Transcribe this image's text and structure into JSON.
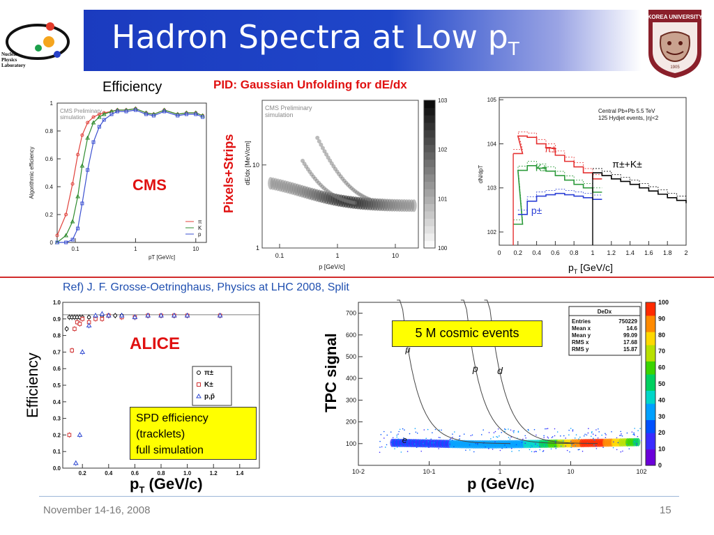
{
  "header": {
    "title_main": "Hadron Spectra at Low p",
    "title_sub": "T",
    "logo_lines": [
      "Nuclear",
      "Physics",
      "Laboratory"
    ],
    "seal_text": "KOREA UNIVERSITY",
    "seal_year": "1905"
  },
  "top_row": {
    "efficiency_label": "Efficiency",
    "pid_label": "PID: Gaussian Unfolding for dE/dx",
    "pixels_strips_label": "Pixels+Strips",
    "cms_label": "CMS",
    "pt_label": "p",
    "pt_label_sub": "T",
    "pt_label_unit": " [GeV/c]"
  },
  "ref_text": "Ref) J. F. Grosse-Oetringhaus, Physics at LHC 2008, Split",
  "bottom_row": {
    "alice_label": "ALICE",
    "efficiency_label": "Efficiency",
    "spd_box": [
      "SPD efficiency",
      "(tracklets)",
      "full simulation"
    ],
    "pt_label": "p",
    "pt_label_sub": "T",
    "pt_label_unit": " (GeV/c)",
    "tpc_label": "TPC signal",
    "cosmic_label": "5 M cosmic events",
    "p_label": "p  (GeV/c)"
  },
  "footer": {
    "date": "November 14-16, 2008",
    "page": "15"
  },
  "chart_data": [
    {
      "type": "line",
      "panel": "cms-efficiency",
      "annotation": [
        "CMS Preliminary",
        "simulation"
      ],
      "xlabel": "pT [GeV/c]",
      "ylabel": "Algorithmic efficiency",
      "x_scale": "log",
      "xlim": [
        0.05,
        15
      ],
      "ylim": [
        0,
        1
      ],
      "x_ticks": [
        "0.1",
        "1",
        "10"
      ],
      "y_ticks": [
        "0",
        "0.2",
        "0.4",
        "0.6",
        "0.8",
        "1"
      ],
      "legend": [
        "π",
        "K",
        "p"
      ],
      "colors": {
        "pi": "#e0403a",
        "K": "#2e8b2e",
        "p": "#3a4fd0"
      },
      "x": [
        0.05,
        0.07,
        0.09,
        0.11,
        0.13,
        0.16,
        0.2,
        0.25,
        0.3,
        0.4,
        0.5,
        0.7,
        1,
        1.5,
        2,
        3,
        5,
        7,
        10,
        13
      ],
      "series": [
        {
          "name": "π",
          "values": [
            0.05,
            0.2,
            0.42,
            0.63,
            0.77,
            0.86,
            0.9,
            0.92,
            0.93,
            0.94,
            0.95,
            0.95,
            0.96,
            0.93,
            0.92,
            0.95,
            0.92,
            0.93,
            0.93,
            0.91
          ]
        },
        {
          "name": "K",
          "values": [
            0.0,
            0.05,
            0.15,
            0.33,
            0.55,
            0.75,
            0.86,
            0.9,
            0.92,
            0.94,
            0.95,
            0.95,
            0.96,
            0.93,
            0.92,
            0.95,
            0.92,
            0.93,
            0.93,
            0.91
          ]
        },
        {
          "name": "p",
          "values": [
            0.0,
            0.0,
            0.02,
            0.1,
            0.28,
            0.52,
            0.72,
            0.83,
            0.88,
            0.92,
            0.94,
            0.94,
            0.95,
            0.92,
            0.91,
            0.94,
            0.91,
            0.92,
            0.92,
            0.9
          ]
        }
      ]
    },
    {
      "type": "heatmap",
      "panel": "cms-dedx",
      "annotation": [
        "CMS Preliminary",
        "simulation"
      ],
      "xlabel": "p [GeV/c]",
      "ylabel": "dE/dx [MeV/cm]",
      "x_scale": "log",
      "y_scale": "log",
      "x_ticks": [
        "0.1",
        "1",
        "10"
      ],
      "y_ticks": [
        "1",
        "10"
      ],
      "colorbar_ticks": [
        "10^0",
        "10^1",
        "10^2",
        "10^3"
      ]
    },
    {
      "type": "line",
      "panel": "cms-spectra",
      "annotation": [
        "Central Pb+Pb 5.5 TeV",
        "125 Hydjet events, |η|<2"
      ],
      "xlabel": "pT [GeV/c]",
      "ylabel": "dN/dpT",
      "y_scale": "log",
      "xlim": [
        0,
        2
      ],
      "x_ticks": [
        "0",
        "0.2",
        "0.4",
        "0.6",
        "0.8",
        "1",
        "1.2",
        "1.4",
        "1.6",
        "1.8",
        "2"
      ],
      "y_ticks": [
        "10^2",
        "10^3",
        "10^4",
        "10^5"
      ],
      "series": [
        {
          "name": "π±",
          "color": "#e53030",
          "x": [
            0.15,
            0.2,
            0.3,
            0.4,
            0.5,
            0.6,
            0.7,
            0.8,
            0.9,
            1.0
          ],
          "values": [
            6000,
            15000,
            14000,
            10000,
            8000,
            5500,
            4000,
            3000,
            2200,
            1600
          ]
        },
        {
          "name": "K±",
          "color": "#2b9a3a",
          "x": [
            0.15,
            0.2,
            0.3,
            0.4,
            0.5,
            0.6,
            0.7,
            0.8,
            0.9,
            1.0
          ],
          "values": [
            150,
            2500,
            3200,
            2800,
            2400,
            1900,
            1500,
            1200,
            1000,
            800
          ]
        },
        {
          "name": "p±",
          "color": "#2a3fd6",
          "x": [
            0.2,
            0.3,
            0.4,
            0.5,
            0.6,
            0.7,
            0.8,
            0.9,
            1.0
          ],
          "values": [
            250,
            500,
            650,
            700,
            750,
            700,
            650,
            600,
            550
          ]
        },
        {
          "name": "π±+K±",
          "color": "#000000",
          "x": [
            1.0,
            1.1,
            1.2,
            1.3,
            1.4,
            1.5,
            1.6,
            1.7,
            1.8,
            1.9,
            2.0
          ],
          "values": [
            2200,
            1900,
            1600,
            1400,
            1200,
            1000,
            850,
            720,
            600,
            520,
            450
          ]
        }
      ]
    },
    {
      "type": "scatter",
      "panel": "alice-efficiency",
      "xlabel": "pT (GeV/c)",
      "ylabel": "Efficiency",
      "xlim": [
        0.05,
        1.55
      ],
      "ylim": [
        0,
        1
      ],
      "x_ticks": [
        "0.2",
        "0.4",
        "0.6",
        "0.8",
        "1.0",
        "1.2",
        "1.4"
      ],
      "y_ticks": [
        "0.0",
        "0.1",
        "0.2",
        "0.3",
        "0.4",
        "0.5",
        "0.6",
        "0.7",
        "0.8",
        "0.9",
        "1.0"
      ],
      "legend": [
        "π±",
        "K±",
        "p,p̄"
      ],
      "series": [
        {
          "name": "π±",
          "color": "#000000",
          "x": [
            0.08,
            0.1,
            0.12,
            0.14,
            0.16,
            0.18,
            0.2,
            0.25,
            0.3,
            0.35,
            0.4,
            0.45,
            0.5,
            0.6,
            0.7,
            0.8,
            0.9,
            1.0,
            1.25
          ],
          "values": [
            0.84,
            0.91,
            0.91,
            0.91,
            0.91,
            0.91,
            0.91,
            0.91,
            0.91,
            0.92,
            0.92,
            0.92,
            0.92,
            0.91,
            0.92,
            0.92,
            0.92,
            0.92,
            0.92
          ]
        },
        {
          "name": "K±",
          "color": "#d03030",
          "x": [
            0.1,
            0.12,
            0.14,
            0.16,
            0.18,
            0.2,
            0.25,
            0.3,
            0.35,
            0.4,
            0.5,
            0.6,
            0.7,
            0.8,
            0.9,
            1.0,
            1.25
          ],
          "values": [
            0.2,
            0.71,
            0.84,
            0.88,
            0.87,
            0.9,
            0.88,
            0.9,
            0.9,
            0.92,
            0.91,
            0.91,
            0.92,
            0.92,
            0.92,
            0.92,
            0.92
          ]
        },
        {
          "name": "p,p̄",
          "color": "#2a44d0",
          "x": [
            0.15,
            0.18,
            0.2,
            0.25,
            0.3,
            0.35,
            0.4,
            0.5,
            0.6,
            0.7,
            0.8,
            0.9,
            1.0,
            1.25
          ],
          "values": [
            0.03,
            0.2,
            0.7,
            0.86,
            0.92,
            0.93,
            0.92,
            0.92,
            0.91,
            0.92,
            0.92,
            0.92,
            0.92,
            0.92
          ]
        }
      ]
    },
    {
      "type": "heatmap",
      "panel": "alice-tpc",
      "xlabel": "p (GeV/c)",
      "ylabel": "TPC signal",
      "x_scale": "log",
      "x_ticks": [
        "10^-2",
        "10^-1",
        "1",
        "10",
        "10^2"
      ],
      "y_ticks": [
        "100",
        "200",
        "300",
        "400",
        "500",
        "600",
        "700"
      ],
      "curve_labels": [
        "e",
        "μ",
        "p",
        "d"
      ],
      "colorbar_ticks": [
        "0",
        "10",
        "20",
        "30",
        "40",
        "50",
        "60",
        "70",
        "80",
        "90",
        "100"
      ],
      "stats": {
        "title": "DeDx",
        "rows": [
          {
            "k": "Entries",
            "v": "750229"
          },
          {
            "k": "Mean x",
            "v": "14.6"
          },
          {
            "k": "Mean y",
            "v": "99.09"
          },
          {
            "k": "RMS x",
            "v": "17.68"
          },
          {
            "k": "RMS y",
            "v": "15.87"
          }
        ]
      }
    }
  ]
}
